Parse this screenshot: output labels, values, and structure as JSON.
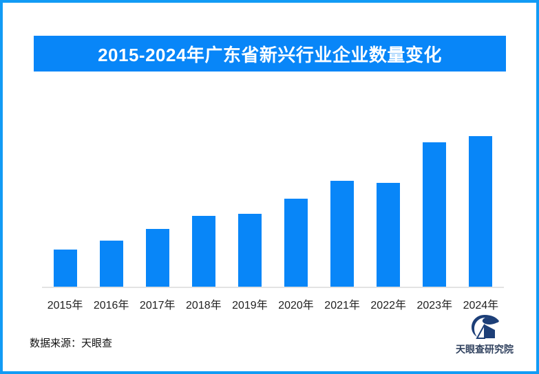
{
  "page": {
    "border_color": "#129bf5",
    "background_color": "#ffffff"
  },
  "header": {
    "title": "2015-2024年广东省新兴行业企业数量变化",
    "banner_color": "#0886f8",
    "title_text_color": "#ffffff"
  },
  "chart_data": {
    "type": "bar",
    "title": "2015-2024年广东省新兴行业企业数量变化",
    "categories": [
      "2015年",
      "2016年",
      "2017年",
      "2018年",
      "2019年",
      "2020年",
      "2021年",
      "2022年",
      "2023年",
      "2024年"
    ],
    "values": [
      54,
      67,
      84,
      103,
      106,
      128,
      154,
      151,
      210,
      219
    ],
    "values_note": "no numeric labels or y-axis shown; values are relative bar heights in px estimated from the image",
    "ylim": [
      0,
      240
    ],
    "xlabel": "",
    "ylabel": "",
    "bar_color": "#0886f8",
    "baseline_color": "#e3e3e3",
    "grid": false,
    "y_axis_shown": false,
    "value_labels_shown": false,
    "legend": "none"
  },
  "footer": {
    "source_text": "数据来源：天眼查",
    "logo": {
      "text": "天眼查研究院",
      "icon": "tianyancha-logo-icon",
      "icon_color": "#1d3f78",
      "text_color": "#31425f"
    }
  }
}
